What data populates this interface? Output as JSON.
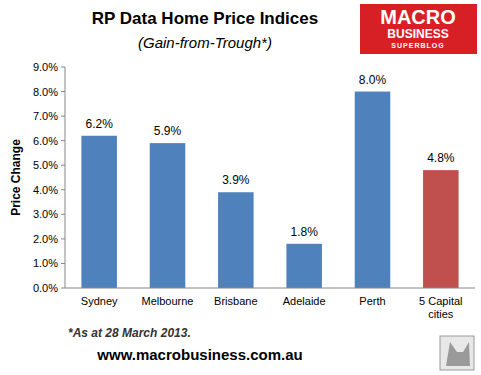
{
  "chart_data": {
    "type": "bar",
    "title": "RP Data Home Price Indices",
    "subtitle": "(Gain-from-Trough*)",
    "y_label": "Price Change",
    "categories": [
      "Sydney",
      "Melbourne",
      "Brisbane",
      "Adelaide",
      "Perth",
      "5 Capital cities"
    ],
    "values": [
      6.2,
      5.9,
      3.9,
      1.8,
      8.0,
      4.8
    ],
    "value_labels": [
      "6.2%",
      "5.9%",
      "3.9%",
      "1.8%",
      "8.0%",
      "4.8%"
    ],
    "colors": [
      "#4f81bd",
      "#4f81bd",
      "#4f81bd",
      "#4f81bd",
      "#4f81bd",
      "#c0504d"
    ],
    "ylim": [
      0,
      9
    ],
    "yticks": [
      {
        "value": 0,
        "label": "0.0%"
      },
      {
        "value": 1,
        "label": "1.0%"
      },
      {
        "value": 2,
        "label": "2.0%"
      },
      {
        "value": 3,
        "label": "3.0%"
      },
      {
        "value": 4,
        "label": "4.0%"
      },
      {
        "value": 5,
        "label": "5.0%"
      },
      {
        "value": 6,
        "label": "6.0%"
      },
      {
        "value": 7,
        "label": "7.0%"
      },
      {
        "value": 8,
        "label": "8.0%"
      },
      {
        "value": 9,
        "label": "9.0%"
      }
    ],
    "grid": false,
    "data_labels": true,
    "annotations": [
      "*As at 28 March 2013.",
      "www.macrobusiness.com.au"
    ],
    "logo": [
      "MACRO",
      "BUSINESS",
      "SUPERBLOG"
    ]
  }
}
